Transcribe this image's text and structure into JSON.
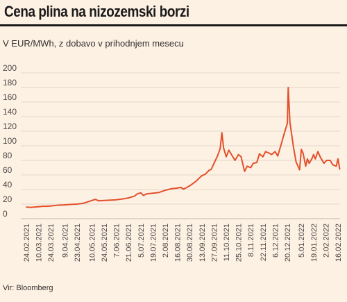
{
  "title": "Cena plina na nizozemski borzi",
  "subtitle": "V EUR/MWh, z dobavo v prihodnjem mesecu",
  "source": "Vir: Bloomberg",
  "colors": {
    "line": "#e4502b",
    "grid": "#e3d7c9",
    "background": "#fdf1e4"
  },
  "chart_data": {
    "type": "line",
    "title": "Cena plina na nizozemski borzi",
    "ylabel": "",
    "xlabel": "",
    "ylim": [
      0,
      200
    ],
    "yticks": [
      0,
      20,
      40,
      60,
      80,
      100,
      120,
      140,
      160,
      180,
      200
    ],
    "grid": true,
    "xtick_labels": [
      "24.02.2021",
      "10.03.2021",
      "24.03.2021",
      "9.04.2021",
      "23.04.2021",
      "10.05.2021",
      "24.05.2021",
      "7.06.2021",
      "21.06.2021",
      "5.07.2021",
      "19.07.2021",
      "2.08.2021",
      "16.08.2021",
      "30.08.2021",
      "13.09.2021",
      "27.09.2021",
      "11.10.2021",
      "25.10.2021",
      "8.11.2021",
      "22.11.2021",
      "6.12.2021",
      "20.12.2021",
      "5.01.2022",
      "19.01.2022",
      "2.02.2022",
      "16.02.2022"
    ],
    "xtick_display": [
      "24.02.2021",
      "10.03.2021",
      "24.03.2021",
      "9.04.2021",
      "23.04.2021",
      "10.05.2021",
      "24.05.2021",
      "7.06.2021",
      "21.06.2021",
      "5.07.2021",
      "19.07.2021",
      "2.08.2021",
      "16.08.2021",
      "30.08.2021",
      "13.09.2021",
      "27.09.2021",
      "11.10.2021",
      "25.10.2021",
      "8.11.2021",
      "22.11.2021",
      "6.12.2021",
      "20.12.2021",
      "5.01.2022",
      "19.01.2022",
      "2.02.2022",
      "16.02.2022"
    ],
    "series": [
      {
        "values": [
          [
            "2021-02-24",
            16
          ],
          [
            "2021-03-01",
            15.5
          ],
          [
            "2021-03-05",
            16
          ],
          [
            "2021-03-10",
            16.5
          ],
          [
            "2021-03-15",
            17
          ],
          [
            "2021-03-20",
            17
          ],
          [
            "2021-03-24",
            17.5
          ],
          [
            "2021-04-01",
            18.5
          ],
          [
            "2021-04-09",
            19
          ],
          [
            "2021-04-15",
            19.5
          ],
          [
            "2021-04-23",
            20
          ],
          [
            "2021-04-30",
            21
          ],
          [
            "2021-05-05",
            23
          ],
          [
            "2021-05-10",
            25
          ],
          [
            "2021-05-14",
            26.5
          ],
          [
            "2021-05-18",
            24.5
          ],
          [
            "2021-05-24",
            25
          ],
          [
            "2021-06-01",
            25.5
          ],
          [
            "2021-06-07",
            26
          ],
          [
            "2021-06-14",
            27
          ],
          [
            "2021-06-21",
            28.5
          ],
          [
            "2021-06-28",
            31
          ],
          [
            "2021-07-01",
            34
          ],
          [
            "2021-07-05",
            35.5
          ],
          [
            "2021-07-08",
            32
          ],
          [
            "2021-07-12",
            34
          ],
          [
            "2021-07-19",
            35
          ],
          [
            "2021-07-26",
            36
          ],
          [
            "2021-08-02",
            39
          ],
          [
            "2021-08-09",
            41
          ],
          [
            "2021-08-16",
            42
          ],
          [
            "2021-08-20",
            43
          ],
          [
            "2021-08-23",
            40.5
          ],
          [
            "2021-08-30",
            45
          ],
          [
            "2021-09-06",
            51
          ],
          [
            "2021-09-13",
            59
          ],
          [
            "2021-09-17",
            61
          ],
          [
            "2021-09-21",
            66
          ],
          [
            "2021-09-24",
            68
          ],
          [
            "2021-09-27",
            76
          ],
          [
            "2021-10-01",
            86
          ],
          [
            "2021-10-04",
            96
          ],
          [
            "2021-10-06",
            118
          ],
          [
            "2021-10-08",
            97
          ],
          [
            "2021-10-11",
            85
          ],
          [
            "2021-10-14",
            94
          ],
          [
            "2021-10-18",
            86
          ],
          [
            "2021-10-21",
            80
          ],
          [
            "2021-10-25",
            88
          ],
          [
            "2021-10-28",
            85
          ],
          [
            "2021-11-01",
            65
          ],
          [
            "2021-11-04",
            72
          ],
          [
            "2021-11-08",
            70
          ],
          [
            "2021-11-11",
            76
          ],
          [
            "2021-11-15",
            77
          ],
          [
            "2021-11-18",
            89
          ],
          [
            "2021-11-22",
            85
          ],
          [
            "2021-11-25",
            92
          ],
          [
            "2021-11-29",
            90
          ],
          [
            "2021-12-02",
            88
          ],
          [
            "2021-12-06",
            92
          ],
          [
            "2021-12-09",
            86
          ],
          [
            "2021-12-13",
            102
          ],
          [
            "2021-12-16",
            115
          ],
          [
            "2021-12-20",
            131
          ],
          [
            "2021-12-21",
            180
          ],
          [
            "2021-12-23",
            132
          ],
          [
            "2021-12-27",
            98
          ],
          [
            "2021-12-30",
            78
          ],
          [
            "2022-01-03",
            67
          ],
          [
            "2022-01-05",
            95
          ],
          [
            "2022-01-07",
            90
          ],
          [
            "2022-01-10",
            72
          ],
          [
            "2022-01-12",
            82
          ],
          [
            "2022-01-14",
            76
          ],
          [
            "2022-01-17",
            82
          ],
          [
            "2022-01-19",
            88
          ],
          [
            "2022-01-21",
            82
          ],
          [
            "2022-01-24",
            92
          ],
          [
            "2022-01-27",
            84
          ],
          [
            "2022-01-31",
            76
          ],
          [
            "2022-02-03",
            80
          ],
          [
            "2022-02-07",
            80
          ],
          [
            "2022-02-10",
            74
          ],
          [
            "2022-02-14",
            72
          ],
          [
            "2022-02-16",
            82
          ],
          [
            "2022-02-18",
            68
          ]
        ]
      }
    ]
  }
}
